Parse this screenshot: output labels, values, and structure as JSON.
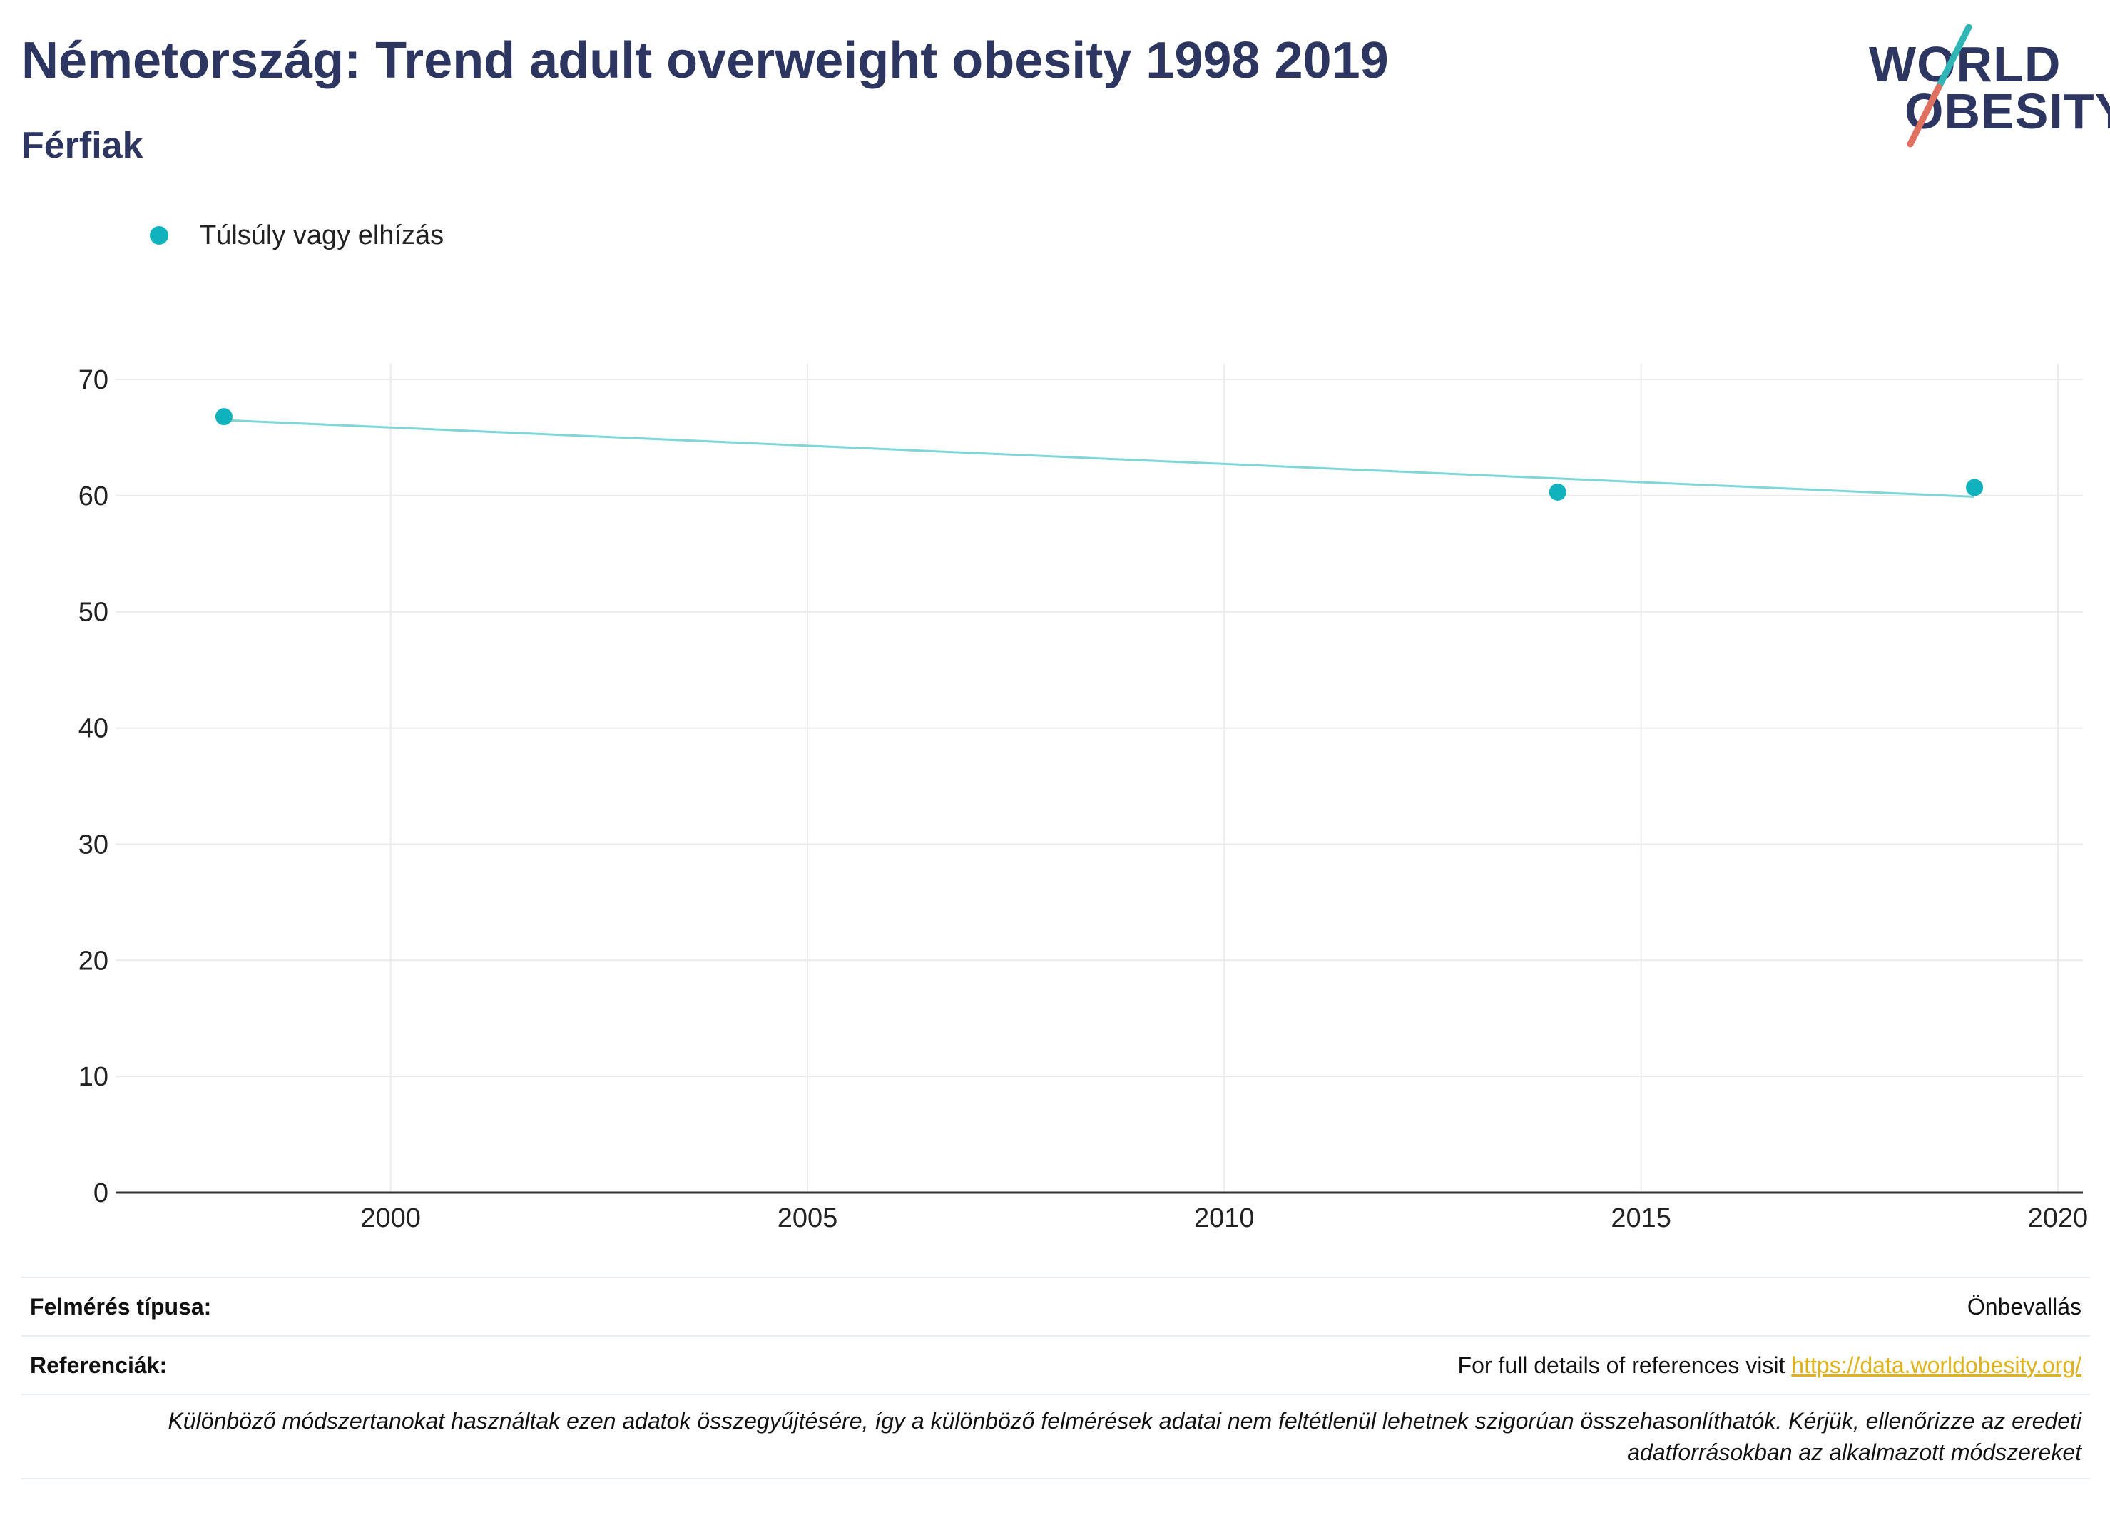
{
  "header": {
    "title": "Németország: Trend adult overweight obesity 1998 2019",
    "subtitle": "Férfiak"
  },
  "logo": {
    "line1": "WORLD",
    "line2": "OBESITY"
  },
  "colors": {
    "series": "#10b3bd",
    "trend": "#7fd6d9",
    "title": "#2d3561",
    "link": "#e0b21a"
  },
  "chart_data": {
    "type": "scatter",
    "series": [
      {
        "name": "Túlsúly vagy elhízás",
        "x": [
          1998,
          2014,
          2019
        ],
        "y": [
          66.8,
          60.3,
          60.7
        ]
      }
    ],
    "trendline": {
      "x": [
        1998,
        2019
      ],
      "y": [
        66.5,
        59.9
      ]
    },
    "xlim": [
      1996.7,
      2020.3
    ],
    "ylim": [
      0,
      70
    ],
    "xticks": [
      2000,
      2005,
      2010,
      2015,
      2020
    ],
    "yticks": [
      0,
      10,
      20,
      30,
      40,
      50,
      60,
      70
    ],
    "grid": true,
    "legend_position": "top-left"
  },
  "info": {
    "survey_label": "Felmérés típusa:",
    "survey_value": "Önbevallás",
    "ref_label": "Referenciák:",
    "ref_text": "For full details of references visit ",
    "ref_link": "https://data.worldobesity.org/",
    "note": "Különböző módszertanokat használtak ezen adatok összegyűjtésére, így a különböző felmérések adatai nem feltétlenül lehetnek szigorúan összehasonlíthatók. Kérjük, ellenőrizze az eredeti adatforrásokban az alkalmazott módszereket"
  }
}
